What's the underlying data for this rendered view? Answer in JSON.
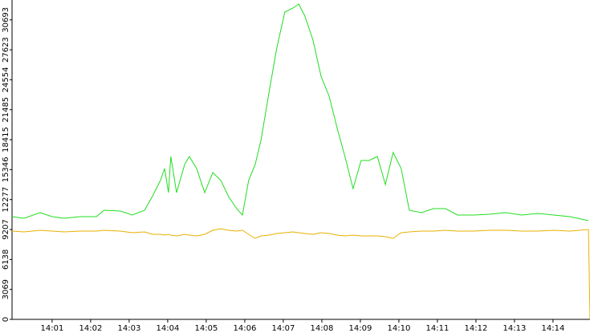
{
  "chart_data": {
    "type": "line",
    "x": [
      839.96,
      840.27,
      840.69,
      841.0,
      841.31,
      841.73,
      842.15,
      842.35,
      842.77,
      843.08,
      843.4,
      843.6,
      843.81,
      843.92,
      844.02,
      844.08,
      844.23,
      844.44,
      844.56,
      844.75,
      844.96,
      845.17,
      845.38,
      845.58,
      845.79,
      845.94,
      846.1,
      846.27,
      846.42,
      846.63,
      846.83,
      847.04,
      847.25,
      847.4,
      847.56,
      847.77,
      847.98,
      848.19,
      848.4,
      848.6,
      848.81,
      849.02,
      849.23,
      849.44,
      849.65,
      849.85,
      850.06,
      850.27,
      850.58,
      850.9,
      851.21,
      851.52,
      851.94,
      852.35,
      852.77,
      853.19,
      853.6,
      854.02,
      854.44,
      854.92,
      854.96
    ],
    "series": [
      {
        "color": "#22dd22",
        "values": [
          10526,
          10362,
          10938,
          10526,
          10362,
          10526,
          10526,
          11184,
          11102,
          10691,
          11184,
          12582,
          14227,
          15461,
          12993,
          16694,
          12993,
          15872,
          16694,
          15461,
          12993,
          15049,
          14227,
          12582,
          11349,
          10691,
          14227,
          15872,
          18339,
          23273,
          27796,
          31497,
          31908,
          32319,
          31086,
          28618,
          24918,
          22862,
          19572,
          16694,
          13405,
          16283,
          16283,
          16694,
          13816,
          17105,
          15461,
          11184,
          10938,
          11349,
          11349,
          10691,
          10691,
          10773,
          10938,
          10691,
          10855,
          10691,
          10526,
          10115,
          null
        ]
      },
      {
        "color": "#e8b000",
        "values": [
          9046,
          8964,
          9128,
          9046,
          8964,
          9046,
          9046,
          9128,
          9046,
          8882,
          8964,
          8717,
          8717,
          8635,
          8717,
          8635,
          8553,
          8717,
          8635,
          8553,
          8717,
          9128,
          9293,
          9128,
          9046,
          9128,
          8717,
          8306,
          8553,
          8635,
          8799,
          8882,
          8964,
          8882,
          8799,
          8717,
          8882,
          8799,
          8635,
          8553,
          8635,
          8553,
          8553,
          8553,
          8470,
          8306,
          8882,
          8964,
          9046,
          9046,
          9128,
          9046,
          9046,
          9128,
          9128,
          9046,
          9046,
          9128,
          9046,
          9210,
          0
        ]
      }
    ],
    "xlim": [
      839.96,
      854.96
    ],
    "xticks": [
      {
        "value": 841,
        "label": "14:01"
      },
      {
        "value": 842,
        "label": "14:02"
      },
      {
        "value": 843,
        "label": "14:03"
      },
      {
        "value": 844,
        "label": "14:04"
      },
      {
        "value": 845,
        "label": "14:05"
      },
      {
        "value": 846,
        "label": "14:06"
      },
      {
        "value": 847,
        "label": "14:07"
      },
      {
        "value": 848,
        "label": "14:08"
      },
      {
        "value": 849,
        "label": "14:09"
      },
      {
        "value": 850,
        "label": "14:10"
      },
      {
        "value": 851,
        "label": "14:11"
      },
      {
        "value": 852,
        "label": "14:12"
      },
      {
        "value": 853,
        "label": "14:13"
      },
      {
        "value": 854,
        "label": "14:14"
      }
    ],
    "ylim": [
      0,
      32730
    ],
    "yticks": [
      0,
      3069,
      6138,
      9207,
      12277,
      15346,
      18415,
      21485,
      24554,
      27623,
      30693
    ]
  }
}
